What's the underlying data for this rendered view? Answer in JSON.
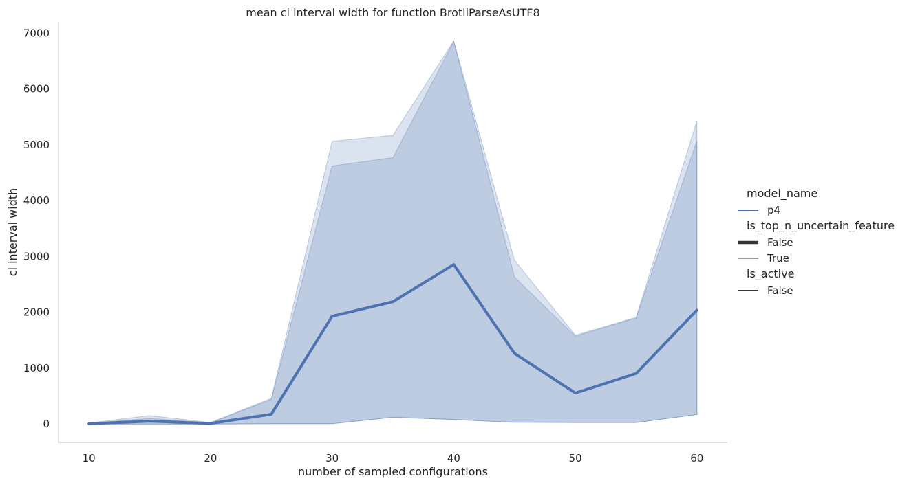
{
  "chart_data": {
    "type": "line",
    "title": "mean ci interval width for function BrotliParseAsUTF8",
    "xlabel": "number of sampled configurations",
    "ylabel": "ci interval width",
    "x": [
      10,
      15,
      20,
      25,
      30,
      35,
      40,
      45,
      50,
      55,
      60
    ],
    "xticks": [
      "10",
      "20",
      "30",
      "40",
      "50",
      "60"
    ],
    "yticks": [
      "0",
      "1000",
      "2000",
      "3000",
      "4000",
      "5000",
      "6000",
      "7000"
    ],
    "xlim": [
      7.5,
      62.5
    ],
    "ylim": [
      -330,
      7200
    ],
    "grid": false,
    "series": [
      {
        "name": "p4",
        "color": "#4c72b0",
        "values": [
          5,
          50,
          10,
          175,
          1930,
          2190,
          2855,
          1265,
          555,
          905,
          2040
        ],
        "ci_outer": {
          "lower": [
            0,
            0,
            0,
            5,
            5,
            120,
            80,
            30,
            25,
            25,
            170
          ],
          "upper": [
            20,
            150,
            25,
            460,
            5060,
            5170,
            6860,
            2930,
            1590,
            1910,
            5430
          ]
        },
        "ci_inner": {
          "lower": [
            0,
            0,
            0,
            5,
            5,
            120,
            80,
            30,
            25,
            25,
            170
          ],
          "upper": [
            15,
            100,
            20,
            440,
            4620,
            4770,
            6850,
            2630,
            1570,
            1900,
            5070
          ]
        }
      }
    ],
    "legend": {
      "position": "right",
      "groups": [
        {
          "title": "model_name",
          "entries": [
            {
              "label": "p4",
              "style": "blue"
            }
          ]
        },
        {
          "title": "is_top_n_uncertain_feature",
          "entries": [
            {
              "label": "False",
              "style": "thick"
            },
            {
              "label": "True",
              "style": "thin"
            }
          ]
        },
        {
          "title": "is_active",
          "entries": [
            {
              "label": "False",
              "style": "medium"
            }
          ]
        }
      ]
    }
  }
}
